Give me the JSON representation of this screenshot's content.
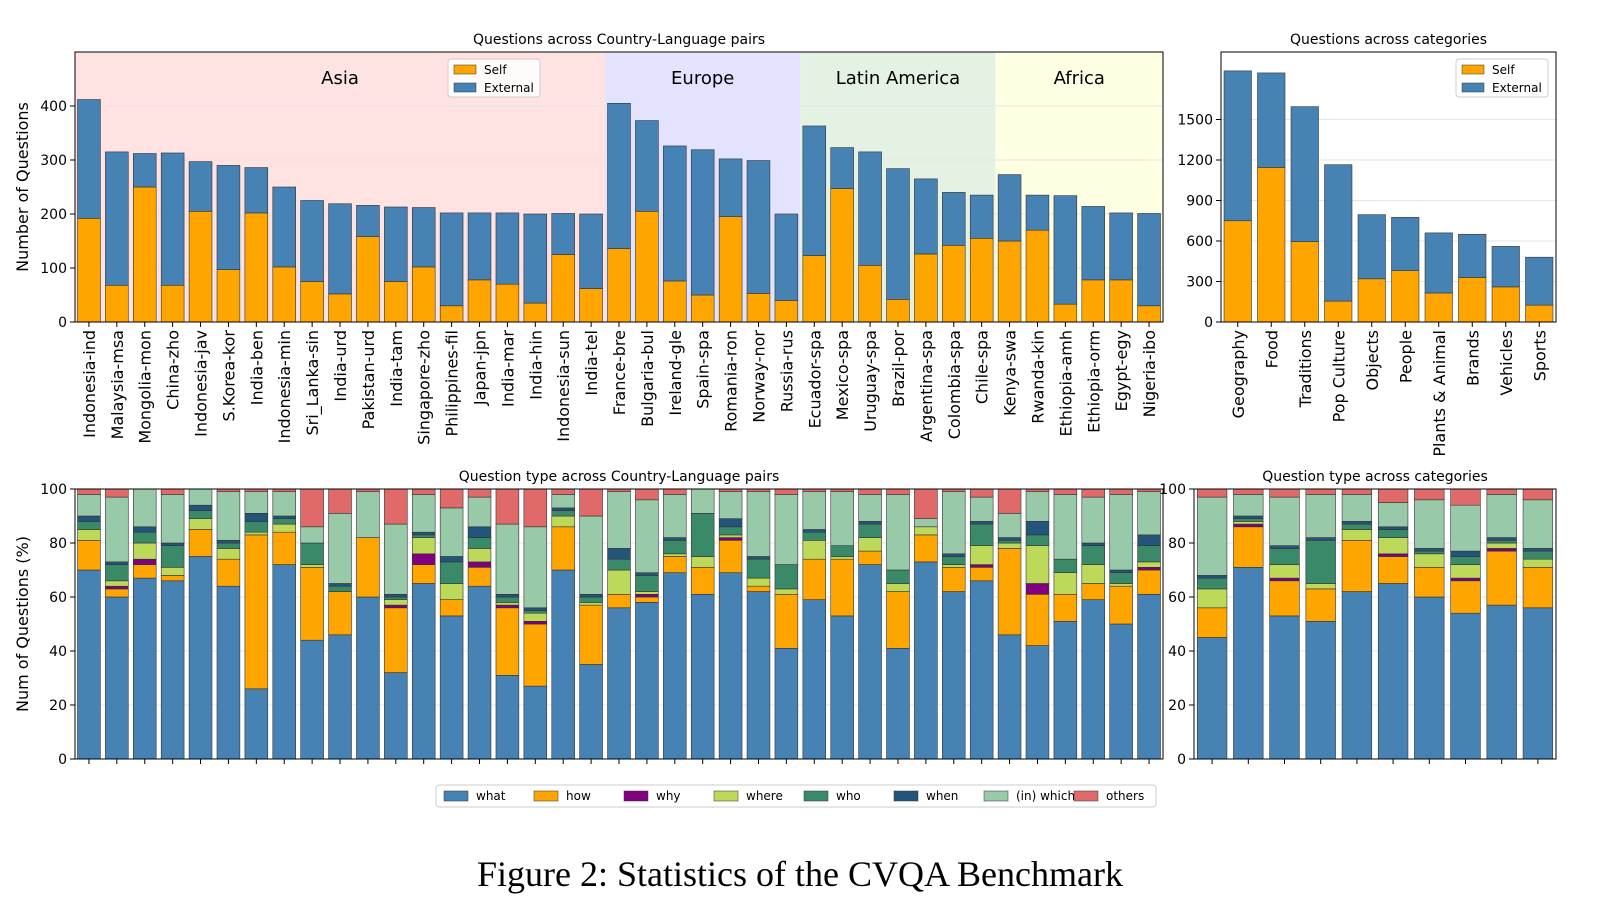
{
  "figure_caption": "Figure 2: Statistics of the CVQA Benchmark",
  "type_legend": [
    "what",
    "how",
    "why",
    "where",
    "who",
    "when",
    "(in) which",
    "others"
  ],
  "colors": {
    "self": "#FFA500",
    "external": "#4682B4",
    "what": "#4682B4",
    "how": "#FFA500",
    "why": "#800080",
    "where": "#BCD95A",
    "who": "#3A8A6A",
    "when": "#23557A",
    "in_which": "#98C9A8",
    "others": "#E06A6A",
    "region_asia": "#FFE3E3",
    "region_europe": "#E3E3FF",
    "region_latam": "#E4F2E4",
    "region_africa": "#FFFFE3"
  },
  "chart_data": [
    {
      "type": "bar",
      "stacked": true,
      "title": "Questions across Country-Language pairs",
      "xlabel": "",
      "ylabel": "Number of Questions",
      "ylim": [
        0,
        500
      ],
      "yticks": [
        0,
        100,
        200,
        300,
        400
      ],
      "legend": [
        "Self",
        "External"
      ],
      "legend_position": "top-center",
      "regions": [
        {
          "name": "Asia",
          "start": 0,
          "end": 18
        },
        {
          "name": "Europe",
          "start": 19,
          "end": 25
        },
        {
          "name": "Latin America",
          "start": 26,
          "end": 32
        },
        {
          "name": "Africa",
          "start": 33,
          "end": 38
        }
      ],
      "categories": [
        "Indonesia-ind",
        "Malaysia-msa",
        "Mongolia-mon",
        "China-zho",
        "Indonesia-jav",
        "S.Korea-kor",
        "India-ben",
        "Indonesia-min",
        "Sri_Lanka-sin",
        "India-urd",
        "Pakistan-urd",
        "India-tam",
        "Singapore-zho",
        "Philippines-fil",
        "Japan-jpn",
        "India-mar",
        "India-hin",
        "Indonesia-sun",
        "India-tel",
        "France-bre",
        "Bulgaria-bul",
        "Ireland-gle",
        "Spain-spa",
        "Romania-ron",
        "Norway-nor",
        "Russia-rus",
        "Ecuador-spa",
        "Mexico-spa",
        "Uruguay-spa",
        "Brazil-por",
        "Argentina-spa",
        "Colombia-spa",
        "Chile-spa",
        "Kenya-swa",
        "Rwanda-kin",
        "Ethiopia-amh",
        "Ethiopia-orm",
        "Egypt-egy",
        "Nigeria-ibo"
      ],
      "series": [
        {
          "name": "Self",
          "values": [
            192,
            68,
            250,
            68,
            205,
            97,
            202,
            102,
            75,
            52,
            158,
            75,
            102,
            30,
            78,
            70,
            35,
            125,
            62,
            136,
            205,
            76,
            50,
            195,
            53,
            40,
            123,
            247,
            105,
            42,
            126,
            142,
            155,
            150,
            170,
            33,
            78,
            78,
            30
          ]
        },
        {
          "name": "External",
          "values": [
            220,
            247,
            62,
            245,
            92,
            193,
            84,
            148,
            150,
            167,
            58,
            138,
            110,
            172,
            124,
            132,
            165,
            76,
            138,
            269,
            168,
            250,
            269,
            107,
            246,
            160,
            240,
            76,
            210,
            242,
            139,
            98,
            80,
            123,
            65,
            201,
            136,
            124,
            171
          ]
        }
      ]
    },
    {
      "type": "bar",
      "stacked": true,
      "title": "Questions across categories",
      "xlabel": "",
      "ylabel": "",
      "ylim": [
        0,
        2000
      ],
      "yticks": [
        0,
        300,
        600,
        900,
        1200,
        1500
      ],
      "legend": [
        "Self",
        "External"
      ],
      "legend_position": "top-right",
      "categories": [
        "Geography",
        "Food",
        "Traditions",
        "Pop Culture",
        "Objects",
        "People",
        "Plants & Animal",
        "Brands",
        "Vehicles",
        "Sports"
      ],
      "series": [
        {
          "name": "Self",
          "values": [
            750,
            1145,
            595,
            155,
            320,
            380,
            215,
            330,
            260,
            125
          ]
        },
        {
          "name": "External",
          "values": [
            1110,
            700,
            1000,
            1010,
            475,
            395,
            445,
            320,
            300,
            355
          ]
        }
      ]
    },
    {
      "type": "bar",
      "stacked": true,
      "title": "Question type across Country-Language pairs",
      "xlabel": "",
      "ylabel": "Num of Questions (%)",
      "ylim": [
        0,
        100
      ],
      "yticks": [
        0,
        20,
        40,
        60,
        80,
        100
      ],
      "legend": [
        "what",
        "how",
        "why",
        "where",
        "who",
        "when",
        "(in) which",
        "others"
      ],
      "legend_position": "bottom",
      "categories": [
        "Indonesia-ind",
        "Malaysia-msa",
        "Mongolia-mon",
        "China-zho",
        "Indonesia-jav",
        "S.Korea-kor",
        "India-ben",
        "Indonesia-min",
        "Sri_Lanka-sin",
        "India-urd",
        "Pakistan-urd",
        "India-tam",
        "Singapore-zho",
        "Philippines-fil",
        "Japan-jpn",
        "India-mar",
        "India-hin",
        "Indonesia-sun",
        "India-tel",
        "France-bre",
        "Bulgaria-bul",
        "Ireland-gle",
        "Spain-spa",
        "Romania-ron",
        "Norway-nor",
        "Russia-rus",
        "Ecuador-spa",
        "Mexico-spa",
        "Uruguay-spa",
        "Brazil-por",
        "Argentina-spa",
        "Colombia-spa",
        "Chile-spa",
        "Kenya-swa",
        "Rwanda-kin",
        "Ethiopia-amh",
        "Ethiopia-orm",
        "Egypt-egy",
        "Nigeria-ibo"
      ],
      "series": [
        {
          "name": "what",
          "values": [
            70,
            60,
            67,
            66,
            75,
            64,
            26,
            72,
            44,
            46,
            60,
            32,
            65,
            53,
            64,
            31,
            27,
            70,
            35,
            56,
            58,
            69,
            61,
            69,
            62,
            41,
            59,
            53,
            72,
            41,
            73,
            62,
            66,
            46,
            42,
            51,
            59,
            50,
            61
          ]
        },
        {
          "name": "how",
          "values": [
            11,
            3,
            5,
            2,
            10,
            10,
            57,
            12,
            27,
            16,
            22,
            24,
            7,
            6,
            7,
            25,
            23,
            16,
            22,
            5,
            2,
            6,
            10,
            12,
            2,
            20,
            15,
            21,
            5,
            21,
            10,
            9,
            5,
            32,
            19,
            10,
            6,
            14,
            9
          ]
        },
        {
          "name": "why",
          "values": [
            0,
            1,
            2,
            0,
            0,
            0,
            0,
            0,
            0,
            0,
            0,
            1,
            4,
            0,
            2,
            1,
            1,
            0,
            0,
            0,
            1,
            0,
            0,
            1,
            0,
            0,
            0,
            0,
            0,
            0,
            0,
            0,
            1,
            0,
            4,
            0,
            0,
            0,
            1
          ]
        },
        {
          "name": "where",
          "values": [
            4,
            2,
            6,
            3,
            4,
            4,
            1,
            3,
            1,
            0,
            0,
            2,
            6,
            6,
            5,
            1,
            3,
            4,
            1,
            9,
            1,
            1,
            4,
            1,
            3,
            2,
            7,
            1,
            5,
            3,
            3,
            1,
            7,
            2,
            14,
            8,
            7,
            1,
            2
          ]
        },
        {
          "name": "who",
          "values": [
            3,
            6,
            4,
            8,
            3,
            2,
            4,
            2,
            8,
            2,
            0,
            1,
            1,
            8,
            4,
            2,
            1,
            2,
            2,
            4,
            6,
            5,
            16,
            3,
            7,
            9,
            3,
            4,
            5,
            5,
            0,
            3,
            8,
            1,
            4,
            5,
            7,
            4,
            6
          ]
        },
        {
          "name": "when",
          "values": [
            2,
            1,
            2,
            1,
            2,
            1,
            3,
            1,
            0,
            1,
            0,
            1,
            1,
            2,
            4,
            1,
            1,
            1,
            1,
            4,
            1,
            1,
            0,
            3,
            1,
            0,
            1,
            0,
            1,
            0,
            0,
            1,
            1,
            1,
            5,
            0,
            1,
            1,
            4
          ]
        },
        {
          "name": "(in) which",
          "values": [
            8,
            24,
            14,
            18,
            6,
            18,
            8,
            9,
            6,
            26,
            17,
            26,
            14,
            18,
            11,
            26,
            30,
            5,
            29,
            21,
            27,
            16,
            9,
            10,
            24,
            26,
            14,
            20,
            10,
            28,
            3,
            23,
            9,
            9,
            11,
            24,
            17,
            28,
            16
          ]
        },
        {
          "name": "others",
          "values": [
            2,
            3,
            0,
            2,
            0,
            1,
            1,
            1,
            14,
            9,
            1,
            13,
            2,
            7,
            3,
            13,
            14,
            2,
            10,
            1,
            4,
            2,
            0,
            1,
            1,
            2,
            1,
            1,
            2,
            2,
            11,
            1,
            3,
            9,
            1,
            2,
            3,
            2,
            1
          ]
        }
      ]
    },
    {
      "type": "bar",
      "stacked": true,
      "title": "Question type across categories",
      "xlabel": "",
      "ylabel": "",
      "ylim": [
        0,
        100
      ],
      "yticks": [
        0,
        20,
        40,
        60,
        80,
        100
      ],
      "legend": [],
      "categories": [
        "Geography",
        "Food",
        "Traditions",
        "Pop Culture",
        "Objects",
        "People",
        "Plants & Animal",
        "Brands",
        "Vehicles",
        "Sports"
      ],
      "series": [
        {
          "name": "what",
          "values": [
            45,
            71,
            53,
            51,
            62,
            65,
            60,
            54,
            57,
            56
          ]
        },
        {
          "name": "how",
          "values": [
            11,
            15,
            13,
            12,
            19,
            10,
            11,
            12,
            20,
            15
          ]
        },
        {
          "name": "why",
          "values": [
            0,
            1,
            1,
            0,
            0,
            1,
            0,
            1,
            1,
            0
          ]
        },
        {
          "name": "where",
          "values": [
            7,
            1,
            5,
            2,
            4,
            6,
            5,
            5,
            2,
            3
          ]
        },
        {
          "name": "who",
          "values": [
            4,
            1,
            6,
            16,
            2,
            3,
            1,
            3,
            1,
            3
          ]
        },
        {
          "name": "when",
          "values": [
            1,
            1,
            1,
            1,
            1,
            1,
            1,
            2,
            1,
            1
          ]
        },
        {
          "name": "(in) which",
          "values": [
            29,
            8,
            18,
            16,
            10,
            9,
            18,
            17,
            16,
            18
          ]
        },
        {
          "name": "others",
          "values": [
            3,
            2,
            3,
            2,
            2,
            5,
            4,
            6,
            2,
            4
          ]
        }
      ]
    }
  ]
}
